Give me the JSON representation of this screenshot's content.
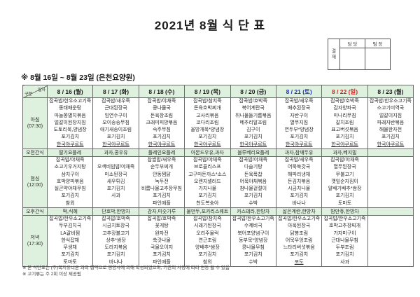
{
  "title": "2021년 8월 식 단 표",
  "subtitle": "※  8월  16일  ~  8월  23일  (은천요양원)",
  "approval": {
    "label": "결재",
    "cols": [
      "담 당",
      "팀 장"
    ]
  },
  "corner": {
    "top": "일자",
    "bottom": "구분"
  },
  "colors": {
    "header_green": "#def0de",
    "saturday": "#2433bb",
    "sunday": "#cc2222",
    "weekday": "#1a1a1a",
    "border": "#6b6b6b"
  },
  "dates": [
    {
      "label": "8 / 16 (월)",
      "color": "#1a1a1a"
    },
    {
      "label": "8 / 17 (화)",
      "color": "#1a1a1a"
    },
    {
      "label": "8 / 18 (수)",
      "color": "#1a1a1a"
    },
    {
      "label": "8 / 19 (목)",
      "color": "#1a1a1a"
    },
    {
      "label": "8 / 20 (금)",
      "color": "#1a1a1a"
    },
    {
      "label": "8 / 21 (토)",
      "color": "#2433bb"
    },
    {
      "label": "8 / 22 (일)",
      "color": "#cc2222"
    },
    {
      "label": "8 / 23 (월)",
      "color": "#1a1a1a"
    }
  ],
  "rows": [
    {
      "label": "아침",
      "time": "(07:30)",
      "type": "meal",
      "cells": [
        [
          "잡곡밥/한우소고기죽",
          "동태매운탕",
          "마늘쫑멸치볶음",
          "얼갈이된장지짐",
          "도토리묵,양념장",
          "포기김치",
          "한국야쿠르트"
        ],
        [
          "잡곡밥/새우죽",
          "근대된장국",
          "임연수구이",
          "오이송송무침",
          "애기새송이조림",
          "포기김치",
          "한국야쿠르트"
        ],
        [
          "잡곡밥/야채죽",
          "콩나물국",
          "돈육장조림",
          "크래미피망볶음",
          "숙주무침",
          "포기김치",
          "한국야쿠르트"
        ],
        [
          "잡곡밥/참치죽",
          "돈육호박찌개",
          "고사리볶음",
          "코다리조림",
          "올방개묵*양념장",
          "포기김치",
          "한국야쿠르트"
        ],
        [
          "잡곡밥/호박죽",
          "북어계란국",
          "취나물들기름볶음",
          "메추리알조림",
          "김구이",
          "포기김치",
          "한국야쿠르트"
        ],
        [
          "잡곡밥/새우죽",
          "배추된장국",
          "자반구이",
          "열무지짐",
          "연두부*양념장",
          "포기김치",
          "한국야쿠르트"
        ],
        [
          "잡곡밥/호박죽",
          "감자양파국",
          "미나리무침",
          "갈치조림",
          "표고버섯볶음",
          "포기김치",
          "한국야쿠르트"
        ],
        [
          "잡곡밥/한우소고기죽",
          "소고기미역국",
          "얼갈이지짐",
          "파래자반볶음",
          "해물완자전",
          "포기김치",
          "한국야쿠르트"
        ]
      ]
    },
    {
      "label": "오전간식",
      "time": "",
      "type": "snack",
      "cells": [
        "딸기요플레",
        "과자,콩우유",
        "플레인요플레",
        "아몬드우유,과자",
        "블루베리요플레",
        "과자,참깨두유",
        "과자,베지밀",
        ""
      ]
    },
    {
      "label": "점심",
      "time": "(12:00)",
      "type": "meal",
      "cells": [
        [
          "잡곡밥/야채죽",
          "소고기우거지탕",
          "삼치구이",
          "호박양파볶음",
          "실곤약야채무침",
          "포기김치",
          "참외"
        ],
        [
          "오색비빔밥/야채죽",
          "미소된장국",
          "새우튀김",
          "포기김치",
          "사과"
        ],
        [
          "찹쌀밥/새우죽",
          "순두부찌개",
          "안동찜닭",
          "녹두전",
          "비름나물고추장무침",
          "포기김치",
          "파인애플"
        ],
        [
          "잡곡밥/야채죽",
          "브로콜리스프",
          "고구마돈까스*소스",
          "오렌지샐러드",
          "가지나물",
          "포기김치",
          "천도복숭아"
        ],
        [
          "잡곡밥/야채죽",
          "다슬기탕",
          "돈육폭찹",
          "어묵야채볶음",
          "참나물겉절이",
          "포기김치",
          "수박"
        ],
        [
          "잡곡밥/새우죽",
          "어묵쑥갓국",
          "해파리냉채",
          "돈김치볶음",
          "시금치나물",
          "포기김치",
          "바나나"
        ],
        [
          "잡곡밥/야채죽",
          "열무된장국",
          "무불고기",
          "깻잎순지짐이",
          "알배기배추*쌈장",
          "포기김치",
          "토마토"
        ],
        []
      ]
    },
    {
      "label": "오후간식",
      "time": "",
      "type": "snack",
      "cells": [
        "떡,식혜",
        "단호박,한방차",
        "감자,미숫가루",
        "물만두,포카리스웨트",
        "카스테라,한방차",
        "삶은계란,한방차",
        "밤만쥬,한방차",
        ""
      ]
    },
    {
      "label": "저녁",
      "time": "(17:30)",
      "type": "meal",
      "cells": [
        [
          "잡곡밥/한우소고기죽",
          "두부김치국",
          "LA갈비찜",
          "한식잡채",
          "무생채",
          "포기김치",
          "토마토"
        ],
        [
          "잡곡밥/호박죽",
          "시금치토장국",
          "고추장불고기",
          "상추*쌈장",
          "도라지볶음",
          "포기김치",
          "바나나"
        ],
        [
          "잡곡밥/호박죽",
          "꽃게탕",
          "완자전",
          "쑥갓나물",
          "국물오이지",
          "포기김치",
          "파인애플"
        ],
        [
          "잡곡밥/참치죽",
          "시래기된장국",
          "오리주물럭",
          "연근조림",
          "양배추*쌈장",
          "포기김치",
          "참외"
        ],
        [
          "잡곡밥/한우소고기죽",
          "수제비국",
          "북어포양념구이",
          "동부묵*양념장",
          "콩나물무침",
          "포기김치",
          "수박"
        ],
        [
          "잡곡밥/한우소고기죽",
          "아욱된장국",
          "닭봉조림",
          "어묵우엉조림",
          "느타리버섯볶음",
          "포기김치",
          "포도"
        ],
        [
          "잡곡밥/한우소고기죽",
          "호박고추장찌개",
          "가자미구이",
          "근대나물무침",
          "두부조림",
          "포기김치",
          "사과"
        ],
        []
      ]
    }
  ],
  "underlined_items": [
    "한국야쿠르트",
    "포도"
  ],
  "footnotes": [
    "※ 본 식단표는 (주)복지유니온 과의 협약으로 영양사에 의해 작성되었으며, 기관의 사정에 따라 변동 될 수 있음",
    "※ 고기류는 주 2회 이상 제공됨"
  ]
}
